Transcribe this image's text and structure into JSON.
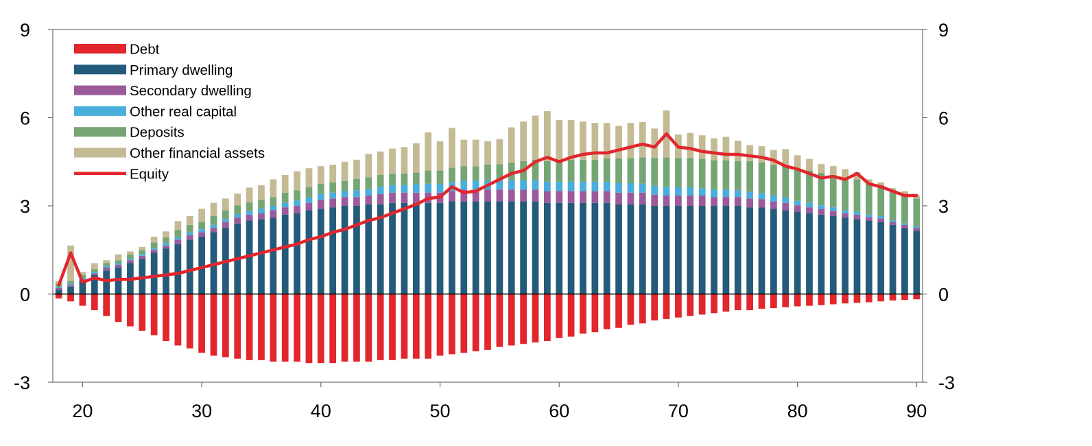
{
  "chart_data": {
    "type": "bar",
    "stacked": true,
    "x": [
      18,
      19,
      20,
      21,
      22,
      23,
      24,
      25,
      26,
      27,
      28,
      29,
      30,
      31,
      32,
      33,
      34,
      35,
      36,
      37,
      38,
      39,
      40,
      41,
      42,
      43,
      44,
      45,
      46,
      47,
      48,
      49,
      50,
      51,
      52,
      53,
      54,
      55,
      56,
      57,
      58,
      59,
      60,
      61,
      62,
      63,
      64,
      65,
      66,
      67,
      68,
      69,
      70,
      71,
      72,
      73,
      74,
      75,
      76,
      77,
      78,
      79,
      80,
      81,
      82,
      83,
      84,
      85,
      86,
      87,
      88,
      89,
      90
    ],
    "x_ticks": [
      "20",
      "30",
      "40",
      "50",
      "60",
      "70",
      "80",
      "90"
    ],
    "x_tick_values": [
      20,
      30,
      40,
      50,
      60,
      70,
      80,
      90
    ],
    "y_ticks": [
      "9",
      "6",
      "3",
      "0",
      "-3"
    ],
    "y_tick_values": [
      9,
      6,
      3,
      0,
      -3
    ],
    "ylim": [
      -3,
      9
    ],
    "xlim": [
      17.5,
      90.5
    ],
    "grid": false,
    "legend_position": "top-left",
    "series": [
      {
        "name": "Debt",
        "kind": "bar",
        "color": "#e1262c",
        "values": [
          -0.15,
          -0.25,
          -0.4,
          -0.55,
          -0.75,
          -0.95,
          -1.1,
          -1.25,
          -1.4,
          -1.6,
          -1.75,
          -1.85,
          -2.0,
          -2.1,
          -2.15,
          -2.2,
          -2.25,
          -2.25,
          -2.3,
          -2.3,
          -2.3,
          -2.35,
          -2.35,
          -2.35,
          -2.3,
          -2.3,
          -2.3,
          -2.25,
          -2.25,
          -2.2,
          -2.2,
          -2.2,
          -2.1,
          -2.05,
          -2.0,
          -1.95,
          -1.9,
          -1.8,
          -1.75,
          -1.7,
          -1.65,
          -1.6,
          -1.5,
          -1.45,
          -1.35,
          -1.3,
          -1.2,
          -1.15,
          -1.05,
          -1.0,
          -0.9,
          -0.85,
          -0.8,
          -0.75,
          -0.7,
          -0.65,
          -0.6,
          -0.55,
          -0.55,
          -0.5,
          -0.48,
          -0.45,
          -0.42,
          -0.4,
          -0.38,
          -0.35,
          -0.32,
          -0.3,
          -0.28,
          -0.25,
          -0.22,
          -0.2,
          -0.18
        ]
      },
      {
        "name": "Primary dwelling",
        "kind": "bar",
        "color": "#245a7a",
        "values": [
          0.15,
          0.25,
          0.45,
          0.65,
          0.8,
          0.9,
          1.05,
          1.2,
          1.4,
          1.55,
          1.7,
          1.85,
          1.95,
          2.1,
          2.25,
          2.4,
          2.5,
          2.55,
          2.6,
          2.7,
          2.75,
          2.85,
          2.9,
          2.95,
          3.0,
          3.0,
          3.05,
          3.05,
          3.1,
          3.1,
          3.1,
          3.1,
          3.1,
          3.15,
          3.15,
          3.15,
          3.15,
          3.15,
          3.15,
          3.15,
          3.15,
          3.1,
          3.1,
          3.1,
          3.1,
          3.1,
          3.1,
          3.05,
          3.05,
          3.05,
          3.0,
          3.0,
          3.0,
          3.0,
          3.0,
          3.0,
          3.0,
          3.0,
          2.95,
          2.95,
          2.9,
          2.85,
          2.8,
          2.75,
          2.7,
          2.65,
          2.6,
          2.55,
          2.5,
          2.45,
          2.35,
          2.25,
          2.15
        ]
      },
      {
        "name": "Secondary dwelling",
        "kind": "bar",
        "color": "#9b5a9a",
        "values": [
          0.05,
          0.05,
          0.05,
          0.05,
          0.1,
          0.1,
          0.1,
          0.1,
          0.1,
          0.1,
          0.15,
          0.15,
          0.15,
          0.15,
          0.2,
          0.2,
          0.2,
          0.2,
          0.25,
          0.25,
          0.25,
          0.25,
          0.3,
          0.3,
          0.3,
          0.3,
          0.3,
          0.35,
          0.35,
          0.35,
          0.35,
          0.35,
          0.35,
          0.35,
          0.4,
          0.4,
          0.4,
          0.4,
          0.4,
          0.4,
          0.4,
          0.4,
          0.4,
          0.4,
          0.4,
          0.4,
          0.4,
          0.4,
          0.4,
          0.4,
          0.38,
          0.35,
          0.35,
          0.35,
          0.35,
          0.3,
          0.3,
          0.3,
          0.3,
          0.28,
          0.25,
          0.25,
          0.22,
          0.2,
          0.2,
          0.18,
          0.15,
          0.15,
          0.12,
          0.12,
          0.1,
          0.1,
          0.1
        ]
      },
      {
        "name": "Other real capital",
        "kind": "bar",
        "color": "#49aedc",
        "values": [
          0.05,
          0.05,
          0.05,
          0.05,
          0.05,
          0.05,
          0.05,
          0.05,
          0.05,
          0.08,
          0.08,
          0.1,
          0.1,
          0.1,
          0.1,
          0.12,
          0.12,
          0.15,
          0.15,
          0.15,
          0.18,
          0.18,
          0.2,
          0.2,
          0.2,
          0.22,
          0.22,
          0.25,
          0.25,
          0.25,
          0.28,
          0.3,
          0.3,
          0.3,
          0.3,
          0.3,
          0.3,
          0.32,
          0.32,
          0.32,
          0.32,
          0.32,
          0.32,
          0.32,
          0.32,
          0.32,
          0.32,
          0.32,
          0.32,
          0.3,
          0.3,
          0.3,
          0.28,
          0.28,
          0.25,
          0.25,
          0.25,
          0.22,
          0.22,
          0.2,
          0.2,
          0.18,
          0.15,
          0.15,
          0.12,
          0.12,
          0.1,
          0.1,
          0.08,
          0.08,
          0.05,
          0.05,
          0.05
        ]
      },
      {
        "name": "Deposits",
        "kind": "bar",
        "color": "#76a575",
        "values": [
          0.1,
          0.1,
          0.1,
          0.1,
          0.1,
          0.1,
          0.15,
          0.15,
          0.2,
          0.2,
          0.25,
          0.25,
          0.25,
          0.3,
          0.3,
          0.3,
          0.3,
          0.3,
          0.3,
          0.35,
          0.35,
          0.35,
          0.35,
          0.35,
          0.35,
          0.4,
          0.4,
          0.4,
          0.4,
          0.4,
          0.4,
          0.45,
          0.45,
          0.5,
          0.5,
          0.5,
          0.55,
          0.55,
          0.6,
          0.65,
          0.7,
          0.7,
          0.7,
          0.75,
          0.75,
          0.75,
          0.8,
          0.85,
          0.85,
          0.9,
          0.95,
          1.0,
          1.0,
          1.0,
          1.0,
          1.0,
          1.0,
          1.0,
          1.05,
          1.05,
          1.05,
          1.1,
          1.1,
          1.1,
          1.1,
          1.1,
          1.1,
          1.1,
          1.05,
          1.05,
          1.0,
          1.0,
          0.95
        ]
      },
      {
        "name": "Other financial assets",
        "kind": "bar",
        "color": "#c4bb94",
        "values": [
          0.1,
          1.2,
          0.1,
          0.2,
          0.1,
          0.2,
          0.1,
          0.1,
          0.2,
          0.2,
          0.3,
          0.3,
          0.45,
          0.45,
          0.4,
          0.4,
          0.5,
          0.5,
          0.6,
          0.6,
          0.65,
          0.65,
          0.6,
          0.6,
          0.65,
          0.65,
          0.8,
          0.8,
          0.85,
          0.9,
          1.0,
          1.3,
          1.0,
          1.35,
          0.9,
          0.9,
          0.8,
          0.85,
          1.2,
          1.35,
          1.5,
          1.7,
          1.4,
          1.35,
          1.3,
          1.25,
          1.2,
          1.1,
          1.2,
          1.2,
          1.0,
          1.6,
          0.8,
          0.85,
          0.8,
          0.75,
          0.8,
          0.7,
          0.55,
          0.55,
          0.5,
          0.55,
          0.45,
          0.4,
          0.3,
          0.3,
          0.3,
          0.25,
          0.15,
          0.1,
          0.1,
          0.1,
          0.1
        ]
      },
      {
        "name": "Equity",
        "kind": "line",
        "color": "#e1262c",
        "values": [
          0.3,
          1.4,
          0.4,
          0.55,
          0.45,
          0.5,
          0.5,
          0.55,
          0.6,
          0.65,
          0.7,
          0.8,
          0.9,
          1.0,
          1.1,
          1.2,
          1.3,
          1.4,
          1.5,
          1.6,
          1.7,
          1.85,
          1.95,
          2.1,
          2.2,
          2.35,
          2.5,
          2.6,
          2.75,
          2.9,
          3.05,
          3.25,
          3.3,
          3.65,
          3.45,
          3.5,
          3.7,
          3.9,
          4.1,
          4.2,
          4.5,
          4.65,
          4.5,
          4.65,
          4.75,
          4.8,
          4.8,
          4.9,
          5.0,
          5.1,
          5.0,
          5.45,
          5.0,
          4.95,
          4.85,
          4.8,
          4.75,
          4.75,
          4.7,
          4.65,
          4.55,
          4.35,
          4.25,
          4.1,
          3.95,
          4.0,
          3.9,
          4.1,
          3.75,
          3.65,
          3.5,
          3.35,
          3.35
        ]
      }
    ]
  }
}
